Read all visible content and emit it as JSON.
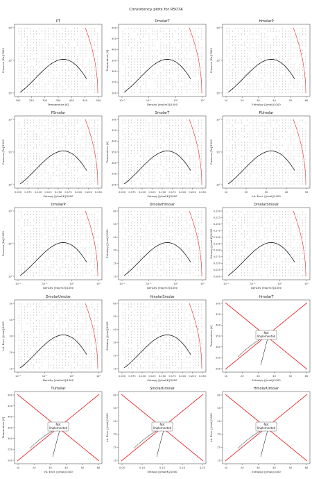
{
  "figure": {
    "title": "Consistency plots for R507A"
  },
  "colors": {
    "curve": "#000000",
    "grid_dots": "#222222",
    "edge": "#e8292b",
    "box_border": "#666666"
  },
  "chart_data": [
    {
      "type": "scatter",
      "title": "PT",
      "xlabel": "Temperature [K]",
      "ylabel": "Pressure [Pa]/1000",
      "xticks": [
        "200",
        "250",
        "300",
        "350",
        "400",
        "450",
        "500"
      ],
      "yticks": [
        "10²",
        "10³",
        "10⁴"
      ],
      "ylog": true,
      "implemented": true
    },
    {
      "type": "scatter",
      "title": "DmolarT",
      "xlabel": "Density [mol/m3]/1000",
      "ylabel": "Temperature [K]",
      "xticks": [
        "10⁻²",
        "10⁻¹",
        "10⁰",
        "10¹"
      ],
      "yticks": [
        "200",
        "250",
        "300",
        "350",
        "400",
        "450",
        "500"
      ],
      "xlog": true,
      "implemented": true
    },
    {
      "type": "scatter",
      "title": "HmolarP",
      "xlabel": "Enthalpy [J/mol]/1000",
      "ylabel": "Pressure [Pa]/1000",
      "xticks": [
        "10",
        "20",
        "30",
        "40",
        "50",
        "60"
      ],
      "yticks": [
        "10²",
        "10³",
        "10⁴"
      ],
      "ylog": true,
      "implemented": true
    },
    {
      "type": "scatter",
      "title": "PSmolar",
      "xlabel": "Entropy [J/mol/K]/1000",
      "ylabel": "Pressure [Pa]/1000",
      "xticks": [
        "0.050",
        "0.075",
        "0.100",
        "0.125",
        "0.150",
        "0.175",
        "0.200",
        "0.225",
        "0.250"
      ],
      "yticks": [
        "10²",
        "10³",
        "10⁴"
      ],
      "ylog": true,
      "implemented": true
    },
    {
      "type": "scatter",
      "title": "SmolarT",
      "xlabel": "Entropy [J/mol/K]/1000",
      "ylabel": "Temperature [K]",
      "xticks": [
        "0.050",
        "0.075",
        "0.100",
        "0.125",
        "0.150",
        "0.175",
        "0.200",
        "0.225",
        "0.250"
      ],
      "yticks": [
        "200",
        "250",
        "300",
        "350",
        "400",
        "450",
        "500"
      ],
      "implemented": true
    },
    {
      "type": "scatter",
      "title": "PUmolar",
      "xlabel": "Int. Ener. [J/mol]/1000",
      "ylabel": "Pressure [Pa]/1000",
      "xticks": [
        "10",
        "20",
        "30",
        "40",
        "50"
      ],
      "yticks": [
        "10²",
        "10³",
        "10⁴"
      ],
      "ylog": true,
      "implemented": true
    },
    {
      "type": "scatter",
      "title": "DmolarP",
      "xlabel": "Density [mol/m3]/1000",
      "ylabel": "Pressure [Pa]/1000",
      "xticks": [
        "10⁻²",
        "10⁻¹",
        "10⁰",
        "10¹"
      ],
      "yticks": [
        "10²",
        "10³",
        "10⁴"
      ],
      "xlog": true,
      "ylog": true,
      "implemented": true
    },
    {
      "type": "scatter",
      "title": "DmolarHmolar",
      "xlabel": "Density [mol/m3]/1000",
      "ylabel": "Enthalpy [J/mol]/1000",
      "xticks": [
        "10⁻²",
        "10⁻¹",
        "10⁰",
        "10¹"
      ],
      "yticks": [
        "10",
        "20",
        "30",
        "40",
        "50",
        "60"
      ],
      "xlog": true,
      "implemented": true
    },
    {
      "type": "scatter",
      "title": "DmolarSmolar",
      "xlabel": "Density [mol/m3]/1000",
      "ylabel": "Entropy [J/mol/K]/1000",
      "xticks": [
        "10⁻²",
        "10⁻¹",
        "10⁰",
        "10¹"
      ],
      "yticks": [
        "0.000",
        "0.025",
        "0.050",
        "0.075",
        "0.100",
        "0.125",
        "0.150",
        "0.175",
        "0.200",
        "0.225",
        "0.250"
      ],
      "xlog": true,
      "implemented": true
    },
    {
      "type": "scatter",
      "title": "DmolarUmolar",
      "xlabel": "Density [mol/m3]/1000",
      "ylabel": "Int. Ener. [J/mol]/1000",
      "xticks": [
        "10⁻²",
        "10⁻¹",
        "10⁰",
        "10¹"
      ],
      "yticks": [
        "10",
        "20",
        "30",
        "40",
        "50"
      ],
      "xlog": true,
      "implemented": true
    },
    {
      "type": "scatter",
      "title": "HmolarSmolar",
      "xlabel": "Entropy [J/mol/K]/1000",
      "ylabel": "Enthalpy [J/mol]/1000",
      "xticks": [
        "0.050",
        "0.075",
        "0.100",
        "0.125",
        "0.150",
        "0.175",
        "0.200",
        "0.225",
        "0.250"
      ],
      "yticks": [
        "10",
        "20",
        "30",
        "40",
        "50",
        "60"
      ],
      "implemented": true
    },
    {
      "type": "scatter",
      "title": "HmolarT",
      "xlabel": "Enthalpy [J/mol]/1000",
      "ylabel": "Temperature [K]",
      "xticks": [
        "10",
        "20",
        "30",
        "40",
        "50",
        "60"
      ],
      "yticks": [
        "200",
        "250",
        "300",
        "350",
        "400",
        "450",
        "500"
      ],
      "implemented": false,
      "note": "Not\nImplemented"
    },
    {
      "type": "scatter",
      "title": "TUmolar",
      "xlabel": "Int. Ener. [J/mol]/1000",
      "ylabel": "Temperature [K]",
      "xticks": [
        "10",
        "20",
        "30",
        "40",
        "50",
        "60"
      ],
      "yticks": [
        "200",
        "250",
        "300",
        "350",
        "400",
        "450",
        "500"
      ],
      "implemented": false,
      "note": "Not\nImplemented"
    },
    {
      "type": "scatter",
      "title": "SmolarUmolar",
      "xlabel": "Entropy [J/mol/K]/1000",
      "ylabel": "Int. Ener. [J/mol]/1000",
      "xticks": [
        "0.05",
        "0.10",
        "0.15",
        "0.20",
        "0.25"
      ],
      "yticks": [
        "10",
        "20",
        "30",
        "40",
        "50",
        "60"
      ],
      "implemented": false,
      "note": "Not\nImplemented"
    },
    {
      "type": "scatter",
      "title": "HmolarUmolar",
      "xlabel": "Enthalpy [J/mol]/1000",
      "ylabel": "Int. Ener. [J/mol]/1000",
      "xticks": [
        "10",
        "20",
        "30",
        "40",
        "50",
        "60"
      ],
      "yticks": [
        "10",
        "20",
        "30",
        "40",
        "50",
        "60"
      ],
      "implemented": false,
      "note": "Not\nImplemented"
    }
  ]
}
